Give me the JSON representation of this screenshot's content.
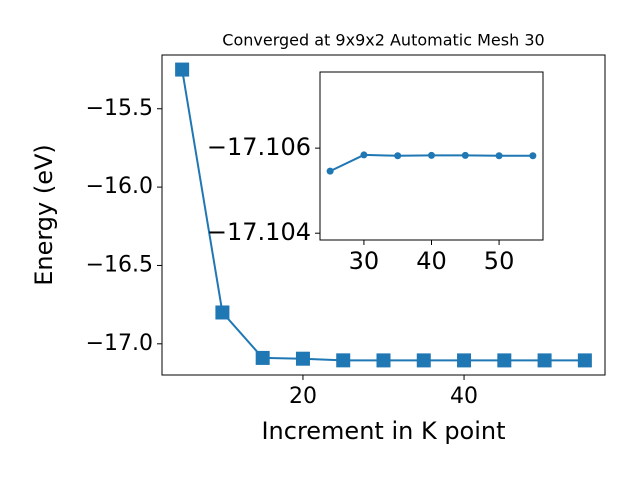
{
  "chart_data": [
    {
      "type": "line",
      "title": "Converged at 9x9x2 Automatic Mesh 30",
      "x_label": "Increment in K point",
      "y_label": "Energy (eV)",
      "x": [
        5,
        10,
        15,
        20,
        25,
        30,
        35,
        40,
        45,
        50,
        55
      ],
      "series": [
        {
          "name": "energy",
          "color": "#1f77b4",
          "marker": "square",
          "values": [
            -15.25,
            -16.8,
            -17.09,
            -17.095,
            -17.1055,
            -17.1058,
            -17.1058,
            -17.1058,
            -17.1058,
            -17.1058,
            -17.1058
          ]
        }
      ],
      "xlim": [
        2.5,
        57.5
      ],
      "xticks": [
        20,
        40
      ],
      "ylim": [
        -17.199,
        -15.157
      ],
      "yticks": [
        {
          "value": -17.0,
          "label": "−17.0"
        },
        {
          "value": -16.5,
          "label": "−16.5"
        },
        {
          "value": -16.0,
          "label": "−16.0"
        },
        {
          "value": -15.5,
          "label": "−15.5"
        }
      ]
    },
    {
      "type": "line",
      "x": [
        25,
        30,
        35,
        40,
        45,
        50,
        55
      ],
      "series": [
        {
          "name": "inset",
          "color": "#1f77b4",
          "marker": "circle",
          "values": [
            -17.10546,
            -17.10584,
            -17.10582,
            -17.10583,
            -17.10583,
            -17.10582,
            -17.10582
          ]
        }
      ],
      "xlim": [
        23.5,
        56.5
      ],
      "xticks": [
        30,
        40,
        50
      ],
      "ylim": [
        -17.10384,
        -17.10779
      ],
      "yticks": [
        {
          "value": -17.104,
          "label": "−17.104"
        },
        {
          "value": -17.106,
          "label": "−17.106"
        }
      ]
    }
  ]
}
